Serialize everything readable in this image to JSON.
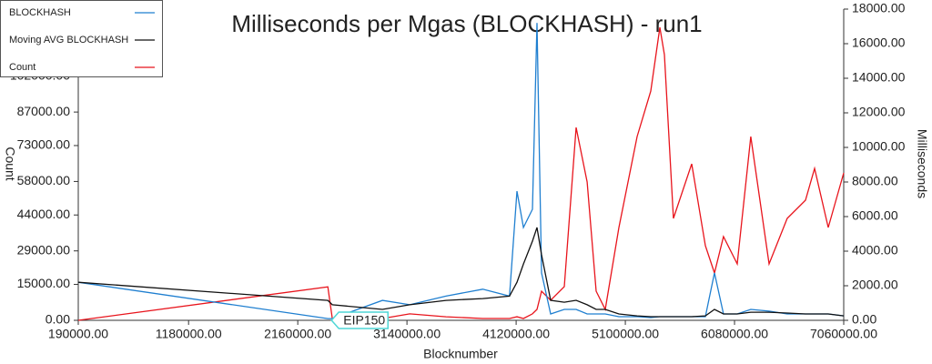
{
  "chart_data": {
    "type": "line",
    "title": "Milliseconds per Mgas (BLOCKHASH) - run1",
    "x_label": "Blocknumber",
    "y_label": "Count",
    "y2_label": "Milliseconds",
    "legend": "top-left",
    "grid": false,
    "xlim": [
      190000,
      7060000
    ],
    "xticks": [
      {
        "value": 190000,
        "label": "190000.00"
      },
      {
        "value": 1180000,
        "label": "1180000.00"
      },
      {
        "value": 2160000,
        "label": "2160000.00"
      },
      {
        "value": 3140000,
        "label": "3140000.00"
      },
      {
        "value": 4120000,
        "label": "4120000.00"
      },
      {
        "value": 5100000,
        "label": "5100000.00"
      },
      {
        "value": 6080000,
        "label": "6080000.00"
      },
      {
        "value": 7060000,
        "label": "7060000.00"
      }
    ],
    "ylim": [
      0,
      130000
    ],
    "yticks": [
      {
        "value": 0,
        "label": "0.00"
      },
      {
        "value": 15000,
        "label": "15000.00"
      },
      {
        "value": 29000,
        "label": "29000.00"
      },
      {
        "value": 44000,
        "label": "44000.00"
      },
      {
        "value": 58000,
        "label": "58000.00"
      },
      {
        "value": 73000,
        "label": "73000.00"
      },
      {
        "value": 87000,
        "label": "87000.00"
      },
      {
        "value": 102000,
        "label": "102000.00"
      }
    ],
    "y2lim": [
      0,
      18000
    ],
    "y2ticks": [
      {
        "value": 0,
        "label": "0.00"
      },
      {
        "value": 2000,
        "label": "2000.00"
      },
      {
        "value": 4000,
        "label": "4000.00"
      },
      {
        "value": 6000,
        "label": "6000.00"
      },
      {
        "value": 8000,
        "label": "8000.00"
      },
      {
        "value": 10000,
        "label": "10000.00"
      },
      {
        "value": 12000,
        "label": "12000.00"
      },
      {
        "value": 14000,
        "label": "14000.00"
      },
      {
        "value": 16000,
        "label": "16000.00"
      },
      {
        "value": 18000,
        "label": "18000.00"
      }
    ],
    "x": [
      190000,
      2430000,
      2470000,
      2920000,
      3165000,
      3490000,
      3820000,
      4060000,
      4127000,
      4185000,
      4266000,
      4307000,
      4348000,
      4430000,
      4552000,
      4658000,
      4757000,
      4838000,
      4920000,
      5042000,
      5206000,
      5328000,
      5410000,
      5451000,
      5532000,
      5696000,
      5818000,
      5900000,
      5981000,
      6104000,
      6226000,
      6390000,
      6553000,
      6717000,
      6799000,
      6921000,
      7060000
    ],
    "series": [
      {
        "name": "BLOCKHASH",
        "color": "#1f7fd0",
        "axis": "y2",
        "values": [
          2200,
          100,
          100,
          1150,
          900,
          1400,
          1800,
          1400,
          7470,
          5370,
          6420,
          17200,
          2740,
          370,
          630,
          630,
          370,
          370,
          370,
          210,
          210,
          160,
          210,
          210,
          210,
          210,
          210,
          2740,
          370,
          370,
          630,
          530,
          370,
          370,
          370,
          370,
          260
        ]
      },
      {
        "name": "Moving AVG BLOCKHASH",
        "color": "#111111",
        "axis": "y2",
        "values": [
          2200,
          1150,
          900,
          630,
          900,
          1150,
          1260,
          1400,
          2200,
          3260,
          4580,
          5370,
          3790,
          1160,
          1050,
          1160,
          900,
          630,
          630,
          370,
          260,
          210,
          210,
          210,
          210,
          210,
          260,
          630,
          370,
          370,
          470,
          470,
          420,
          370,
          370,
          370,
          260
        ]
      },
      {
        "name": "Count",
        "color": "#e8141c",
        "values": [
          0,
          14000,
          760,
          760,
          2700,
          1500,
          760,
          760,
          1500,
          760,
          2700,
          4560,
          12160,
          8360,
          14060,
          80560,
          57760,
          12160,
          4560,
          38760,
          76760,
          95760,
          122360,
          110960,
          42560,
          65360,
          31160,
          19760,
          34960,
          23560,
          76760,
          23560,
          42560,
          50160,
          63460,
          38760,
          61560
        ]
      }
    ],
    "annotations": [
      {
        "text": "EIP150",
        "x": 2463000
      }
    ]
  }
}
